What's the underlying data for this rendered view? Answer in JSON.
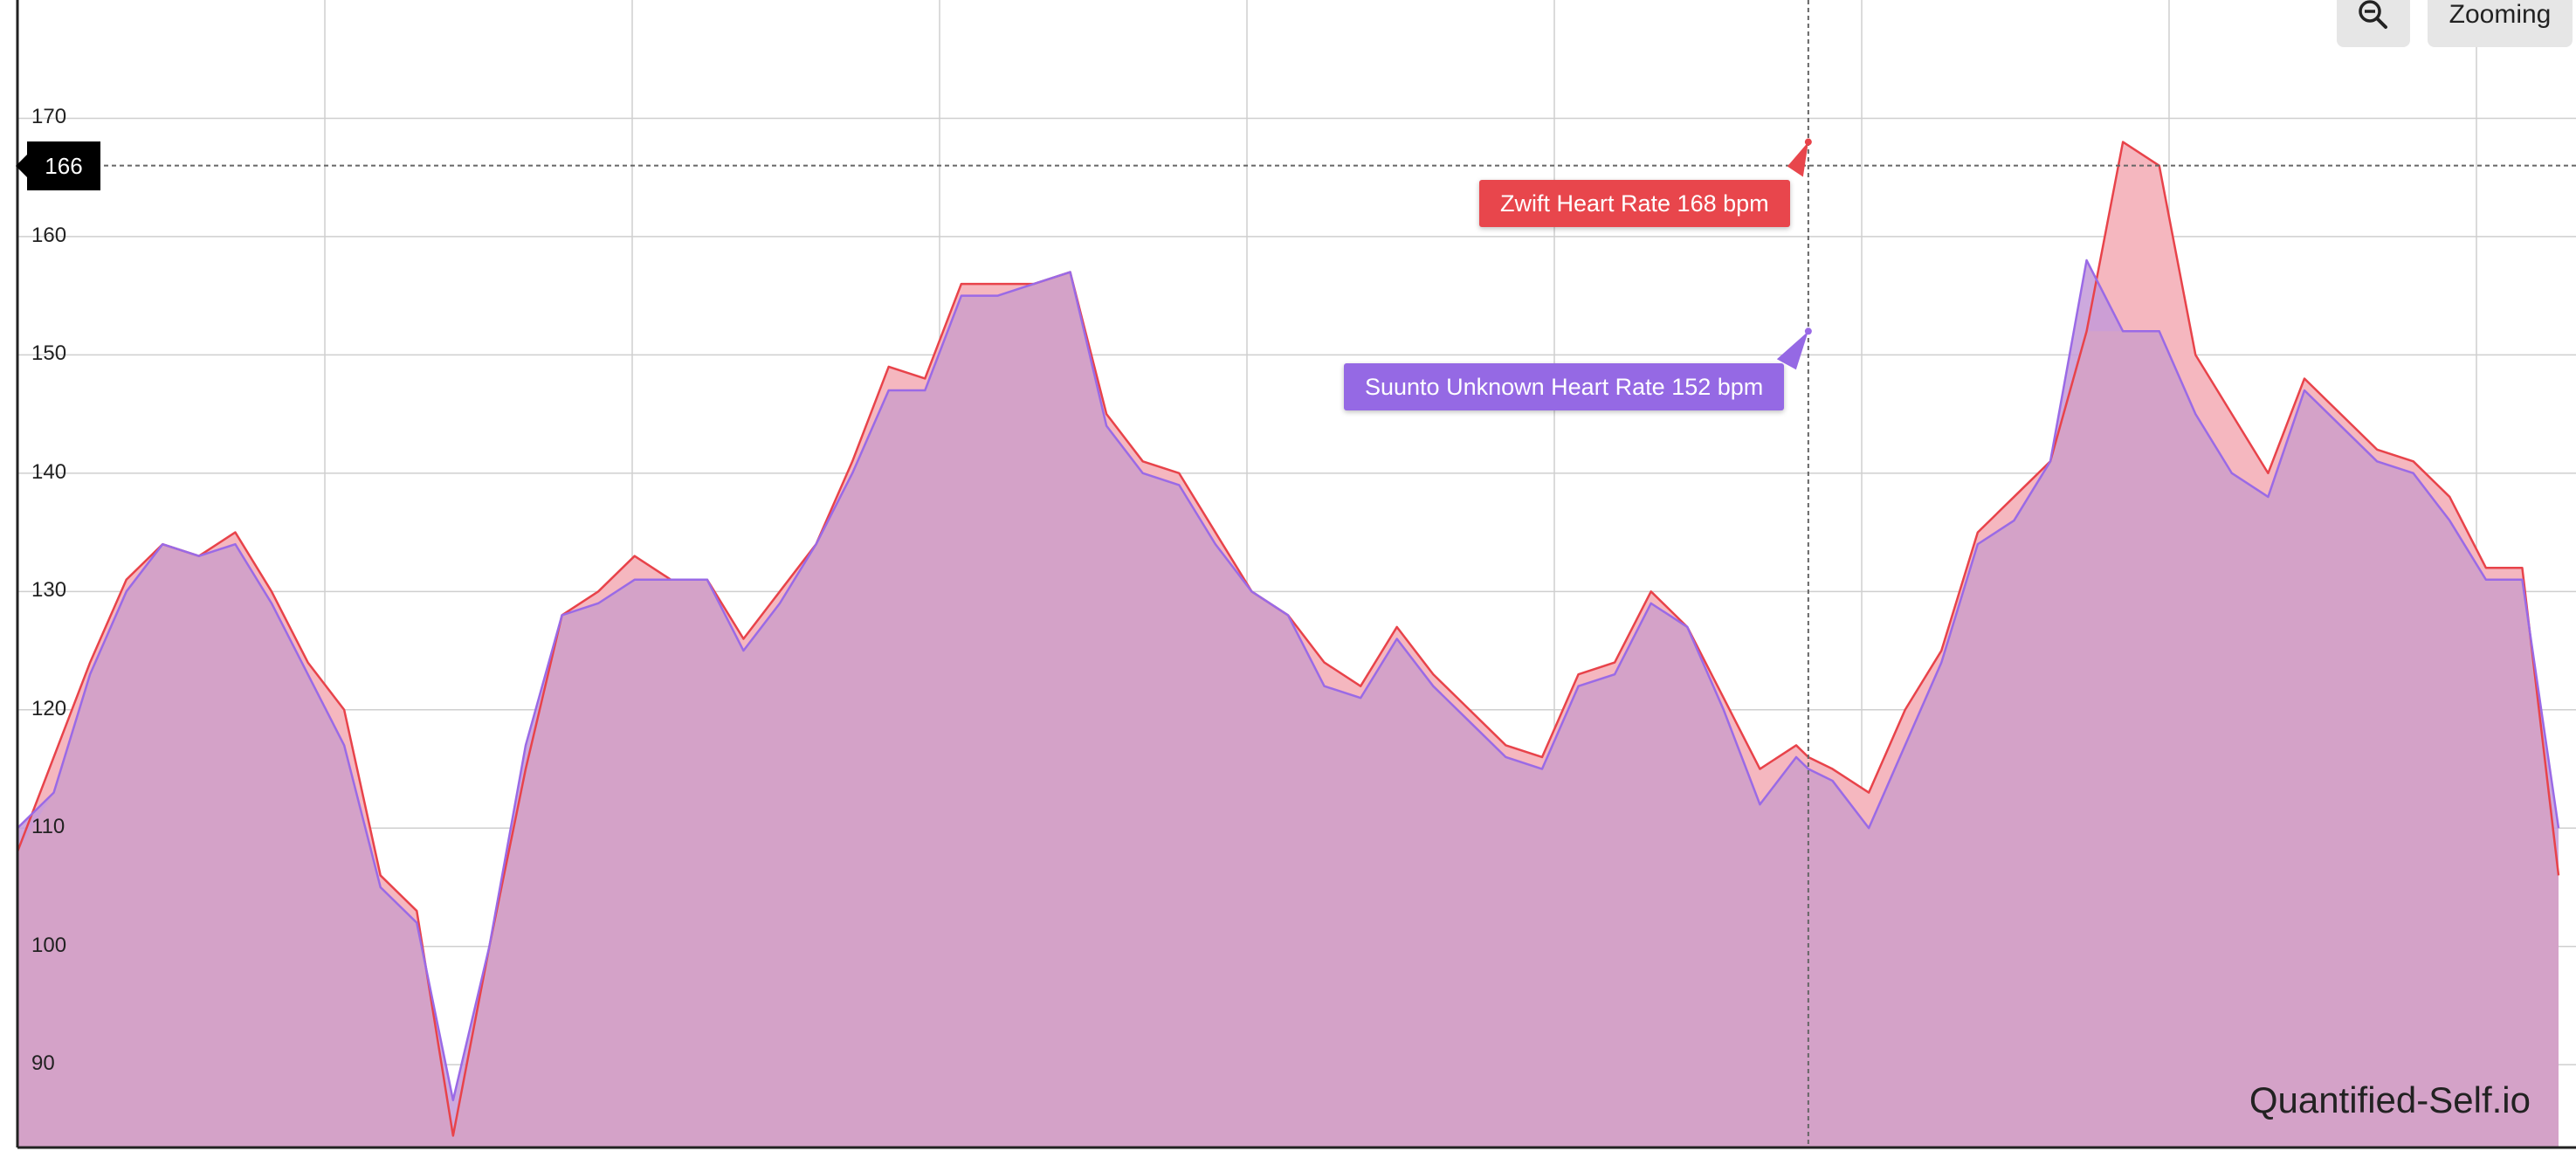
{
  "toolbar": {
    "zoom_icon": "zoom-out-icon",
    "zooming_label": "Zooming"
  },
  "crosshair": {
    "value_label": "166"
  },
  "tooltips": {
    "zwift": "Zwift Heart Rate 168 bpm",
    "suunto": "Suunto Unknown Heart Rate 152 bpm"
  },
  "watermark": "Quantified-Self.io",
  "colors": {
    "zwift_line": "#e8434a",
    "zwift_fill": "#f5b7bf",
    "suunto_line": "#9a6ae6",
    "overlap_fill": "#d4a2c8",
    "tooltip_zwift": "#e8464c",
    "tooltip_suunto": "#9569e4"
  },
  "chart_data": {
    "type": "area",
    "ylim": [
      83,
      180
    ],
    "yticks": [
      90,
      100,
      110,
      120,
      130,
      140,
      150,
      160,
      170
    ],
    "cursor": {
      "x": 148,
      "y": 166
    },
    "grid": true,
    "x": [
      0,
      3,
      6,
      9,
      12,
      15,
      18,
      21,
      24,
      27,
      30,
      33,
      36,
      39,
      42,
      45,
      48,
      51,
      54,
      57,
      60,
      63,
      66,
      69,
      72,
      75,
      78,
      81,
      84,
      87,
      90,
      93,
      96,
      99,
      102,
      105,
      108,
      111,
      114,
      117,
      120,
      123,
      126,
      129,
      132,
      135,
      138,
      141,
      144,
      147,
      148,
      150,
      153,
      156,
      159,
      162,
      165,
      168,
      171,
      174,
      177,
      180,
      183,
      186,
      189,
      192,
      195,
      198,
      201,
      204,
      207,
      210
    ],
    "series": [
      {
        "name": "Zwift Heart Rate",
        "values": [
          108,
          116,
          124,
          131,
          134,
          133,
          135,
          130,
          124,
          120,
          106,
          103,
          84,
          100,
          115,
          128,
          130,
          133,
          131,
          131,
          126,
          130,
          134,
          141,
          149,
          148,
          156,
          156,
          156,
          157,
          145,
          141,
          140,
          135,
          130,
          128,
          124,
          122,
          127,
          123,
          120,
          117,
          116,
          123,
          124,
          130,
          127,
          121,
          115,
          117,
          116,
          115,
          113,
          120,
          125,
          135,
          138,
          141,
          152,
          168,
          166,
          150,
          145,
          140,
          148,
          145,
          142,
          141,
          138,
          132,
          132,
          106
        ]
      },
      {
        "name": "Suunto Unknown Heart Rate",
        "values": [
          110,
          113,
          123,
          130,
          134,
          133,
          134,
          129,
          123,
          117,
          105,
          102,
          87,
          100,
          117,
          128,
          129,
          131,
          131,
          131,
          125,
          129,
          134,
          140,
          147,
          147,
          155,
          155,
          156,
          157,
          144,
          140,
          139,
          134,
          130,
          128,
          122,
          121,
          126,
          122,
          119,
          116,
          115,
          122,
          123,
          129,
          127,
          120,
          112,
          116,
          115,
          114,
          110,
          117,
          124,
          134,
          136,
          141,
          158,
          152,
          152,
          145,
          140,
          138,
          147,
          144,
          141,
          140,
          136,
          131,
          131,
          110
        ]
      }
    ]
  }
}
